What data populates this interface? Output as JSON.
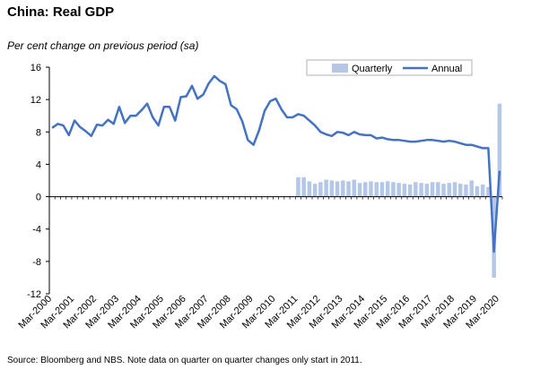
{
  "title": "China: Real GDP",
  "subtitle": "Per cent change on previous period (sa)",
  "source": "Source: Bloomberg and NBS.  Note data on quarter on quarter changes only start in 2011.",
  "chart_data": {
    "type": "bar",
    "ylim": [
      -12,
      16
    ],
    "yticks": [
      -12,
      -8,
      -4,
      0,
      4,
      8,
      12,
      16
    ],
    "x_labels": [
      "Mar-2000",
      "Mar-2001",
      "Mar-2002",
      "Mar-2003",
      "Mar-2004",
      "Mar-2005",
      "Mar-2006",
      "Mar-2007",
      "Mar-2008",
      "Mar-2009",
      "Mar-2010",
      "Mar-2011",
      "Mar-2012",
      "Mar-2013",
      "Mar-2014",
      "Mar-2015",
      "Mar-2016",
      "Mar-2017",
      "Mar-2018",
      "Mar-2019",
      "Mar-2020"
    ],
    "legend_placement": "top-right",
    "series": [
      {
        "name": "Quarterly",
        "type": "bar",
        "color": "#b4c7e7",
        "start_index": 44,
        "values": [
          2.4,
          2.4,
          1.9,
          1.6,
          1.8,
          2.1,
          2.0,
          1.9,
          2.0,
          1.9,
          2.1,
          1.7,
          1.8,
          1.9,
          1.8,
          1.8,
          1.9,
          1.8,
          1.7,
          1.6,
          1.5,
          1.8,
          1.7,
          1.6,
          1.8,
          1.8,
          1.6,
          1.7,
          1.8,
          1.6,
          1.5,
          2.0,
          1.3,
          1.5,
          1.2,
          -10.0,
          11.5
        ]
      },
      {
        "name": "Annual",
        "type": "line",
        "color": "#4472c4",
        "start_index": 0,
        "values": [
          8.5,
          9.0,
          8.8,
          7.6,
          9.4,
          8.6,
          8.1,
          7.5,
          8.9,
          8.8,
          9.5,
          9.0,
          11.1,
          9.1,
          10.0,
          10.0,
          10.7,
          11.5,
          9.8,
          8.8,
          11.1,
          11.1,
          9.4,
          12.3,
          12.4,
          13.7,
          12.1,
          12.6,
          14.0,
          14.9,
          14.3,
          13.9,
          11.3,
          10.8,
          9.3,
          7.0,
          6.4,
          8.2,
          10.6,
          11.8,
          12.1,
          10.8,
          9.8,
          9.8,
          10.2,
          10.0,
          9.4,
          8.8,
          8.0,
          7.7,
          7.5,
          8.0,
          7.9,
          7.6,
          8.0,
          7.7,
          7.6,
          7.6,
          7.2,
          7.3,
          7.1,
          7.0,
          7.0,
          6.9,
          6.8,
          6.8,
          6.9,
          7.0,
          7.0,
          6.9,
          6.8,
          6.9,
          6.8,
          6.6,
          6.4,
          6.4,
          6.2,
          6.0,
          6.0,
          -6.8,
          3.2
        ]
      }
    ]
  }
}
